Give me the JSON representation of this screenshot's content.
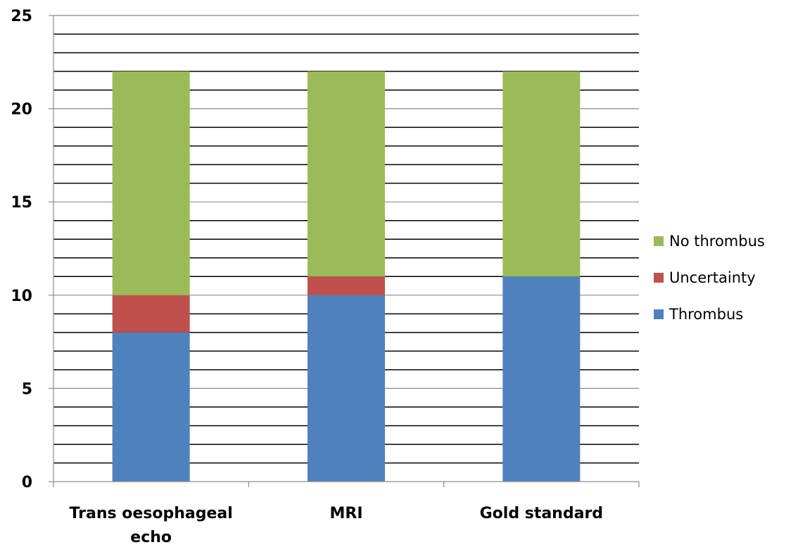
{
  "chart_data": {
    "type": "bar",
    "stacked": true,
    "categories": [
      "Trans oesophageal echo",
      "MRI",
      "Gold standard"
    ],
    "series": [
      {
        "name": "Thrombus",
        "color": "#4f81bd",
        "values": [
          8,
          10,
          11
        ]
      },
      {
        "name": "Uncertainty",
        "color": "#c0504d",
        "values": [
          2,
          1,
          0
        ]
      },
      {
        "name": "No thrombus",
        "color": "#9bbb59",
        "values": [
          12,
          11,
          11
        ]
      }
    ],
    "ylim": [
      0,
      25
    ],
    "y_ticks": [
      0,
      5,
      10,
      15,
      20,
      25
    ],
    "minor_gridline_step": 1,
    "grid": true,
    "legend_position": "right",
    "legend_order": [
      "No thrombus",
      "Uncertainty",
      "Thrombus"
    ],
    "title": "",
    "xlabel": "",
    "ylabel": ""
  }
}
